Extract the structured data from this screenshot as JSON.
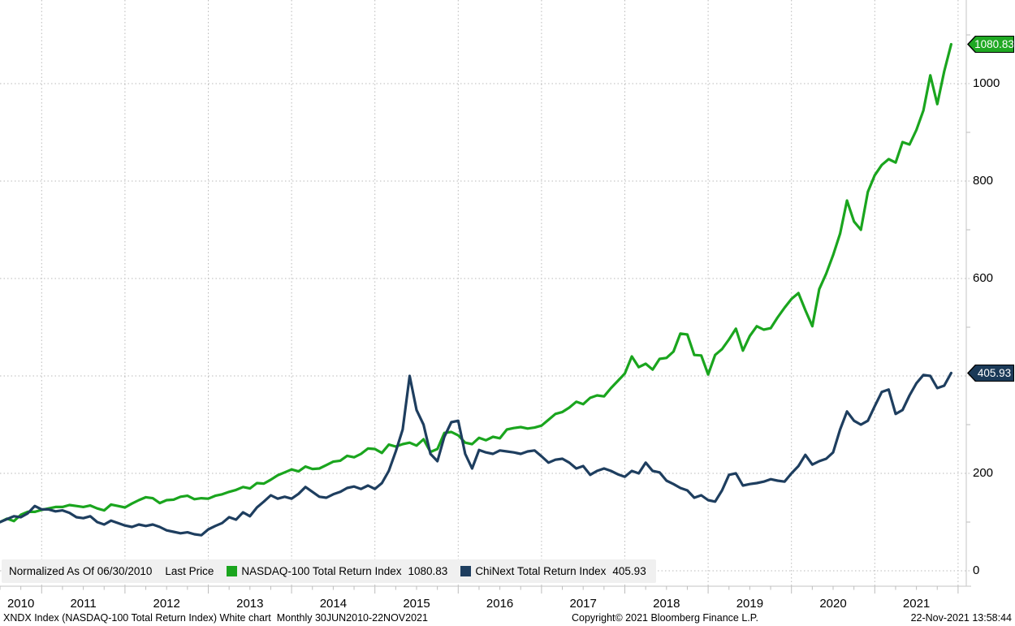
{
  "chart_data": {
    "type": "line",
    "title": "NASDAQ-100 Total Return Index vs ChiNext Total Return Index (Normalized As Of 06/30/2010)",
    "frequency": "monthly",
    "x_start": "JUN2010",
    "x_end": "NOV2021",
    "x_tick_years": [
      "2010",
      "2011",
      "2012",
      "2013",
      "2014",
      "2015",
      "2016",
      "2017",
      "2018",
      "2019",
      "2020",
      "2021"
    ],
    "ylim": [
      0,
      1150
    ],
    "yticks": [
      0,
      200,
      400,
      600,
      800,
      1000
    ],
    "grid": "dotted",
    "legend_position": "bottom-left",
    "series": [
      {
        "name": "NASDAQ-100 Total Return Index",
        "color": "#1aa51e",
        "last_label": "1080.83",
        "last_value": 1080.83,
        "values": [
          100,
          107,
          102,
          115,
          121,
          121,
          125,
          128,
          131,
          131,
          135,
          133,
          131,
          134,
          128,
          124,
          136,
          133,
          130,
          138,
          145,
          151,
          149,
          139,
          145,
          146,
          152,
          154,
          147,
          149,
          148,
          154,
          157,
          162,
          166,
          172,
          169,
          180,
          179,
          187,
          196,
          202,
          208,
          204,
          214,
          209,
          210,
          217,
          224,
          226,
          236,
          233,
          240,
          251,
          250,
          242,
          259,
          255,
          260,
          263,
          257,
          270,
          244,
          250,
          283,
          285,
          278,
          263,
          260,
          273,
          268,
          275,
          272,
          290,
          293,
          295,
          292,
          294,
          298,
          310,
          322,
          326,
          335,
          347,
          342,
          355,
          360,
          358,
          375,
          390,
          405,
          440,
          418,
          425,
          413,
          435,
          437,
          450,
          487,
          485,
          443,
          442,
          403,
          443,
          455,
          475,
          497,
          452,
          482,
          502,
          495,
          498,
          520,
          540,
          558,
          570,
          535,
          502,
          578,
          610,
          648,
          692,
          760,
          717,
          700,
          778,
          812,
          833,
          845,
          838,
          880,
          875,
          905,
          945,
          1017,
          958,
          1025,
          1080.83
        ]
      },
      {
        "name": "ChiNext Total Return Index",
        "color": "#1e3e5f",
        "last_label": "405.93",
        "last_value": 405.93,
        "values": [
          100,
          106,
          112,
          110,
          118,
          133,
          126,
          126,
          122,
          124,
          119,
          110,
          108,
          112,
          100,
          95,
          103,
          98,
          93,
          90,
          95,
          92,
          95,
          90,
          83,
          80,
          77,
          79,
          75,
          73,
          85,
          92,
          98,
          110,
          105,
          120,
          112,
          130,
          142,
          155,
          148,
          152,
          148,
          158,
          172,
          162,
          152,
          150,
          157,
          162,
          170,
          173,
          168,
          175,
          168,
          180,
          205,
          245,
          290,
          400,
          330,
          300,
          240,
          225,
          275,
          305,
          308,
          240,
          210,
          248,
          243,
          240,
          247,
          245,
          243,
          240,
          245,
          247,
          235,
          222,
          228,
          230,
          222,
          210,
          215,
          197,
          205,
          210,
          205,
          198,
          193,
          205,
          200,
          222,
          205,
          202,
          185,
          178,
          170,
          165,
          150,
          155,
          145,
          142,
          165,
          197,
          200,
          175,
          178,
          180,
          183,
          188,
          185,
          183,
          200,
          215,
          238,
          218,
          225,
          230,
          243,
          290,
          327,
          308,
          300,
          308,
          338,
          367,
          372,
          322,
          330,
          360,
          385,
          402,
          400,
          375,
          380,
          405.93
        ]
      }
    ]
  },
  "legend": {
    "normalized_label": "Normalized As Of 06/30/2010",
    "last_price_label": "Last Price",
    "items": [
      {
        "label": "NASDAQ-100 Total Return Index",
        "value": "1080.83",
        "color": "#1aa51e"
      },
      {
        "label": "ChiNext Total Return Index",
        "value": "405.93",
        "color": "#1e3e5f"
      }
    ]
  },
  "price_flags": [
    {
      "text": "1080.83",
      "color": "#1fa823",
      "value": 1080.83
    },
    {
      "text": "405.93",
      "color": "#1b3a58",
      "value": 405.93
    }
  ],
  "footer": {
    "left": "XNDX Index (NASDAQ-100 Total Return Index) White chart  Monthly 30JUN2010-22NOV2021",
    "copyright": "Copyright© 2021 Bloomberg Finance L.P.",
    "datetime": "22-Nov-2021 13:58:44"
  }
}
